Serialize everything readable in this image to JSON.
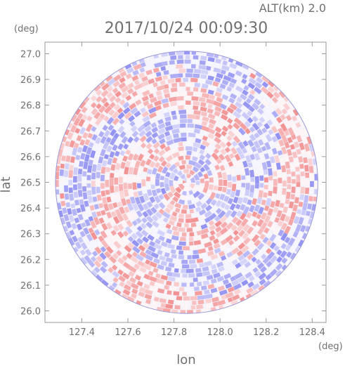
{
  "header": {
    "alt_label": "ALT(km) 2.0",
    "timestamp": "2017/10/24 00:09:30"
  },
  "colors": {
    "positive": "#f28c8c",
    "negative": "#8c8cf2",
    "neutral": "#ffffff",
    "frame": "#9a9a9a",
    "text": "#707070"
  },
  "chart_data": {
    "type": "heatmap",
    "title": "2017/10/24 00:09:30",
    "subtitle": "ALT(km) 2.0",
    "xlabel": "lon",
    "ylabel": "lat",
    "x_unit": "(deg)",
    "y_unit": "(deg)",
    "xlim": [
      127.24,
      128.46
    ],
    "ylim": [
      25.955,
      27.045
    ],
    "x_ticks": [
      127.4,
      127.6,
      127.8,
      128.0,
      128.2,
      128.4
    ],
    "x_tick_labels": [
      "127.4",
      "127.6",
      "127.8",
      "128.0",
      "128.2",
      "128.4"
    ],
    "y_ticks": [
      26.0,
      26.1,
      26.2,
      26.3,
      26.4,
      26.5,
      26.6,
      26.7,
      26.8,
      26.9,
      27.0
    ],
    "y_tick_labels": [
      "26.0",
      "26.1",
      "26.2",
      "26.3",
      "26.4",
      "26.5",
      "26.6",
      "26.7",
      "26.8",
      "26.9",
      "27.0"
    ],
    "radar_center": {
      "lon": 127.855,
      "lat": 26.5
    },
    "radar_radius_deg_lat": 0.51,
    "field": "alternating positive/negative radial velocity pattern in concentric range-gate bands",
    "colorscale": [
      "negative",
      "neutral",
      "positive"
    ],
    "grid": false,
    "legend": "none"
  }
}
